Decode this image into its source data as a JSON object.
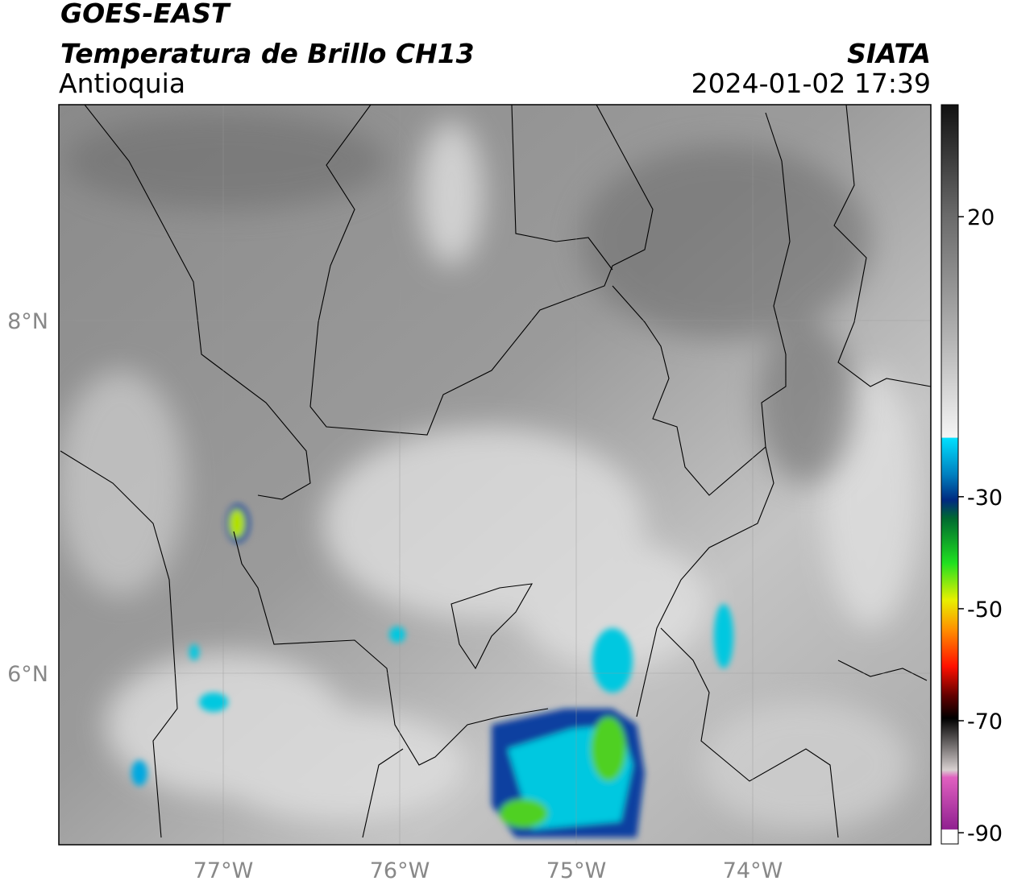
{
  "header": {
    "satellite": "GOES-EAST",
    "product": "Temperatura de Brillo CH13",
    "region": "Antioquia",
    "source": "SIATA",
    "datetime": "2024-01-02 17:39"
  },
  "map": {
    "lat_labels": [
      "8°N",
      "6°N"
    ],
    "lon_labels": [
      "77°W",
      "76°W",
      "75°W",
      "74°W"
    ]
  },
  "colorbar": {
    "lim": [
      -92,
      40
    ],
    "ticks": [
      20,
      -30,
      -50,
      -70,
      -90
    ]
  }
}
